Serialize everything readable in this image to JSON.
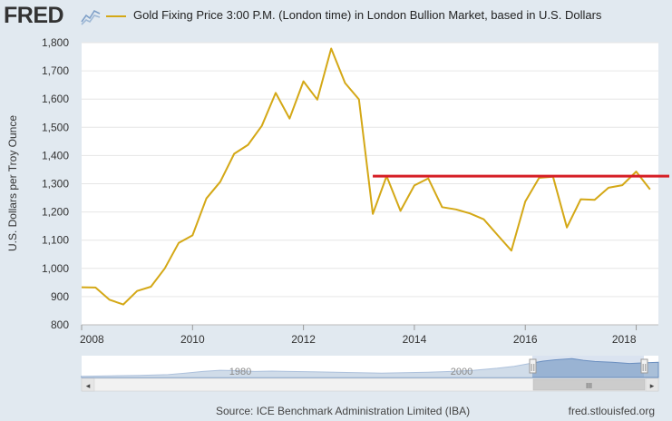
{
  "header": {
    "logo": "FRED",
    "series_title": "Gold Fixing Price 3:00 P.M. (London time) in London Bullion Market, based in U.S. Dollars"
  },
  "colors": {
    "series": "#d4a816",
    "reference_line": "#d61f26",
    "grid": "#e6e6e6",
    "navigator_fill": "#a9bfd8",
    "navigator_line": "#6b8fbf"
  },
  "chart_data": {
    "type": "line",
    "xlim": [
      2008,
      2018.4
    ],
    "ylim": [
      800,
      1800
    ],
    "x_ticks": [
      "2008",
      "2010",
      "2012",
      "2014",
      "2016",
      "2018"
    ],
    "y_ticks": [
      "800",
      "900",
      "1,000",
      "1,100",
      "1,200",
      "1,300",
      "1,400",
      "1,500",
      "1,600",
      "1,700",
      "1,800"
    ],
    "ylabel": "U.S. Dollars per Troy Ounce",
    "grid": "horizontal",
    "series": [
      {
        "x": [
          2008.0,
          2008.25,
          2008.5,
          2008.75,
          2009.0,
          2009.25,
          2009.5,
          2009.75,
          2010.0,
          2010.25,
          2010.5,
          2010.75,
          2011.0,
          2011.25,
          2011.5,
          2011.75,
          2012.0,
          2012.25,
          2012.5,
          2012.75,
          2013.0,
          2013.25,
          2013.5,
          2013.75,
          2014.0,
          2014.25,
          2014.5,
          2014.75,
          2015.0,
          2015.25,
          2015.5,
          2015.75,
          2016.0,
          2016.25,
          2016.5,
          2016.75,
          2017.0,
          2017.25,
          2017.5,
          2017.75,
          2018.0,
          2018.25
        ],
        "values": [
          933,
          932,
          889,
          872,
          920,
          935,
          1000,
          1090,
          1117,
          1248,
          1307,
          1406,
          1438,
          1505,
          1622,
          1531,
          1663,
          1598,
          1779,
          1657,
          1599,
          1193,
          1327,
          1204,
          1294,
          1319,
          1217,
          1209,
          1195,
          1174,
          1118,
          1063,
          1237,
          1321,
          1325,
          1145,
          1245,
          1243,
          1286,
          1295,
          1343,
          1280
        ]
      }
    ],
    "reference_line": {
      "value": 1327,
      "x_start": 2013.25
    }
  },
  "navigator": {
    "labels": [
      "1980",
      "2000"
    ],
    "scroll_left": "◂",
    "scroll_right": "▸",
    "scroll_grip": "III",
    "handle_grip": "||"
  },
  "footer": {
    "source": "Source: ICE Benchmark Administration Limited (IBA)",
    "url": "fred.stlouisfed.org"
  }
}
